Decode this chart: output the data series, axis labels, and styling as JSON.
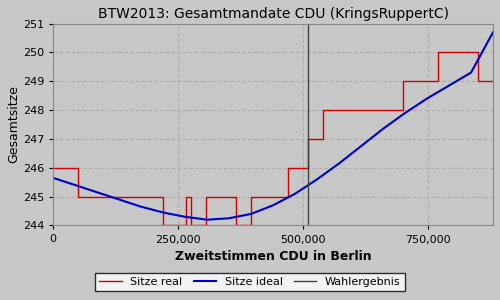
{
  "title": "BTW2013: Gesamtmandate CDU (KringsRuppertC)",
  "xlabel": "Zweitstimmen CDU in Berlin",
  "ylabel": "Gesamtsitze",
  "bg_color": "#c8c8c8",
  "plot_bg": "#c8c8c8",
  "xlim": [
    0,
    880000
  ],
  "ylim": [
    244,
    251
  ],
  "wahlergebnis": 510000,
  "ideal_x": [
    0,
    44000,
    88000,
    132000,
    176000,
    220000,
    264000,
    308000,
    352000,
    396000,
    440000,
    484000,
    528000,
    572000,
    616000,
    660000,
    704000,
    748000,
    792000,
    836000,
    880000
  ],
  "ideal_y": [
    245.65,
    245.4,
    245.15,
    244.9,
    244.65,
    244.45,
    244.3,
    244.2,
    244.25,
    244.4,
    244.7,
    245.1,
    245.6,
    246.15,
    246.75,
    247.35,
    247.9,
    248.4,
    248.85,
    249.3,
    250.7
  ],
  "step_x": [
    0,
    50000,
    50000,
    150000,
    150000,
    220000,
    220000,
    265000,
    265000,
    275000,
    275000,
    305000,
    305000,
    330000,
    330000,
    365000,
    365000,
    395000,
    395000,
    420000,
    420000,
    470000,
    470000,
    510000,
    510000,
    540000,
    540000,
    580000,
    580000,
    620000,
    620000,
    650000,
    650000,
    700000,
    700000,
    730000,
    730000,
    770000,
    770000,
    820000,
    820000,
    850000,
    850000,
    880000
  ],
  "step_y": [
    246,
    246,
    245,
    245,
    245,
    245,
    244,
    244,
    245,
    245,
    244,
    244,
    245,
    245,
    245,
    245,
    244,
    244,
    245,
    245,
    245,
    245,
    246,
    246,
    247,
    247,
    248,
    248,
    248,
    248,
    248,
    248,
    248,
    248,
    249,
    249,
    249,
    249,
    250,
    250,
    250,
    250,
    249,
    249
  ],
  "legend_labels": [
    "Sitze real",
    "Sitze ideal",
    "Wahlergebnis"
  ],
  "line_colors": {
    "real": "#cc0000",
    "ideal": "#0000cc",
    "wahlergebnis": "#404040"
  },
  "grid_color": "#b0b0b0",
  "yticks": [
    244,
    245,
    246,
    247,
    248,
    249,
    250,
    251
  ],
  "xticks": [
    0,
    250000,
    500000,
    750000
  ],
  "xtick_labels": [
    "0",
    "250,000",
    "500,000",
    "750,000"
  ]
}
